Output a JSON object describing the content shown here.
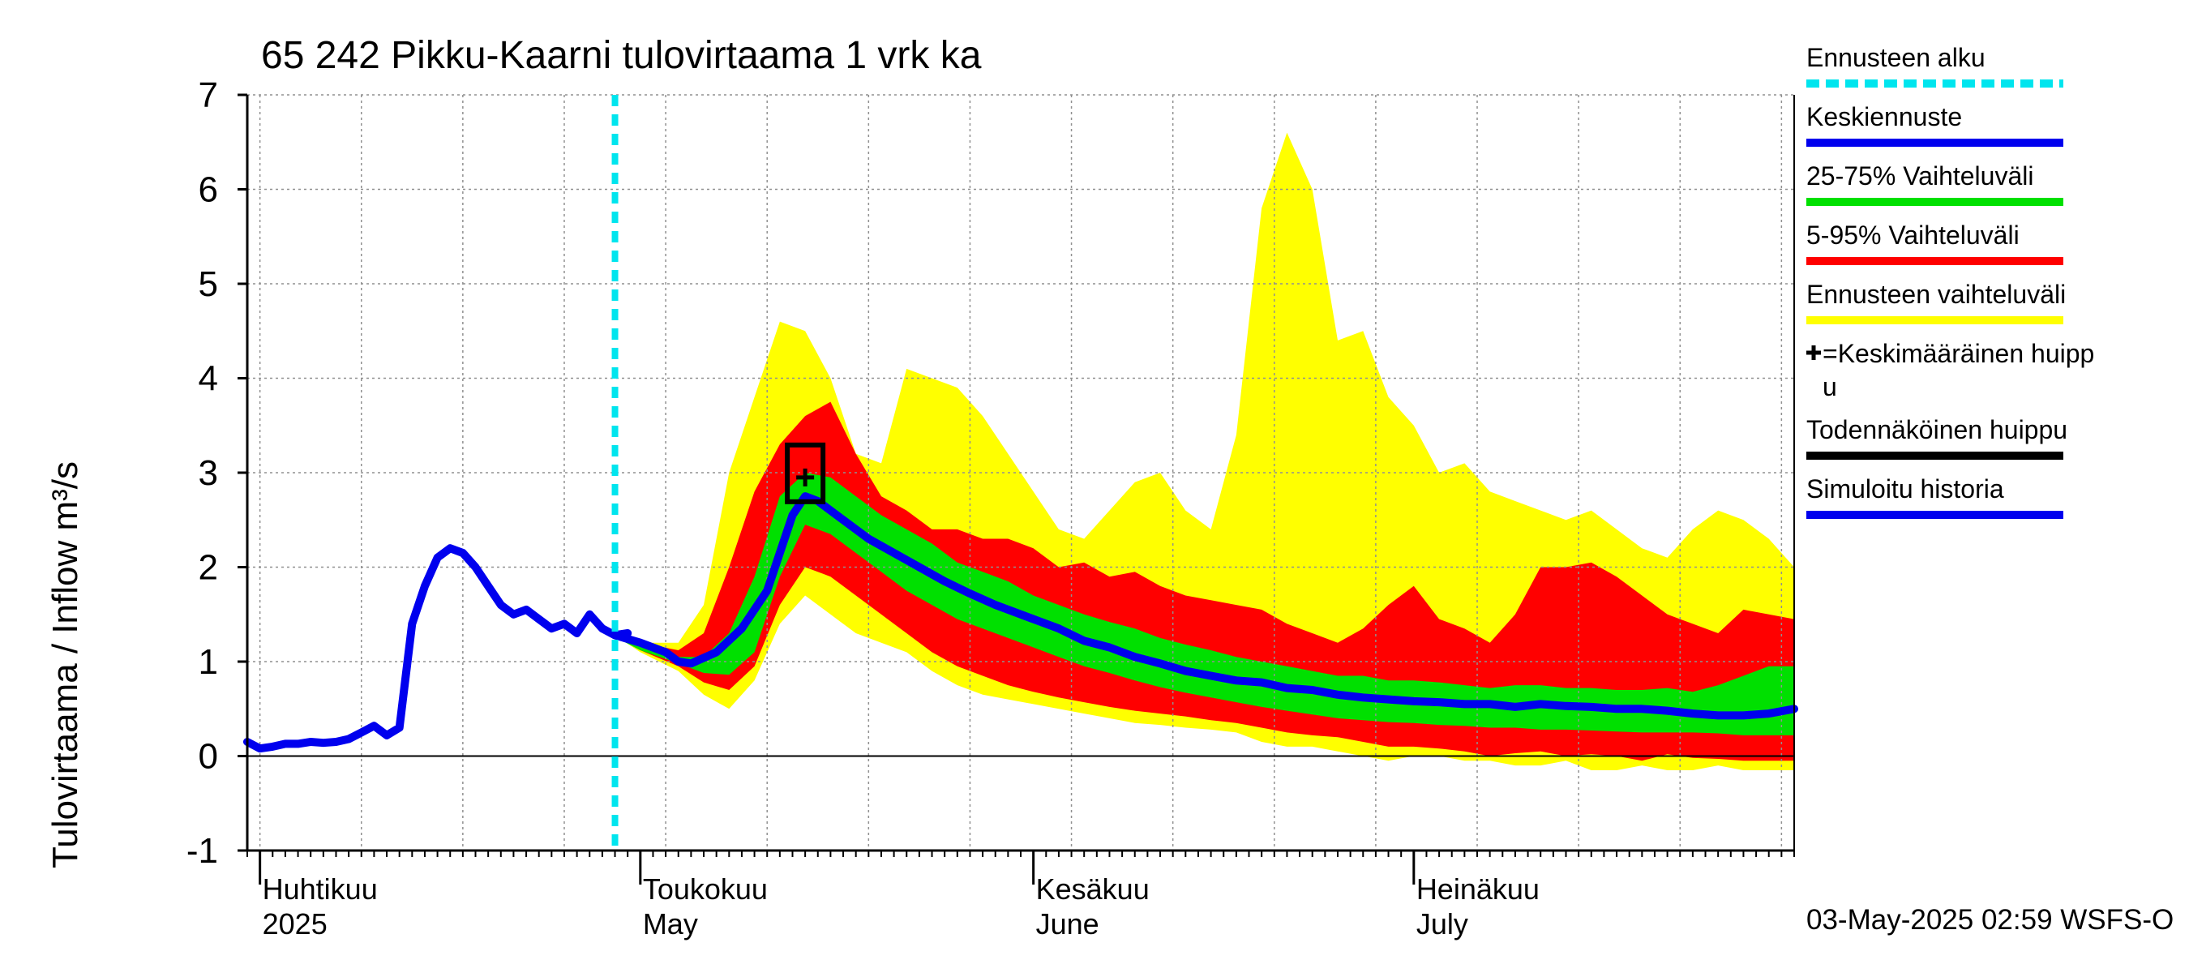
{
  "chart_data": {
    "type": "area",
    "title": "65 242 Pikku-Kaarni tulovirtaama 1 vrk ka",
    "ylabel": "Tulovirtaama / Inflow    m³/s",
    "ylim": [
      -1,
      7
    ],
    "yticks": [
      -1,
      0,
      1,
      2,
      3,
      4,
      5,
      6,
      7
    ],
    "xlim": [
      "2025-03-31",
      "2025-07-31"
    ],
    "grid": true,
    "month_labels": [
      {
        "date": "2025-04-01",
        "fi": "Huhtikuu",
        "en": "2025"
      },
      {
        "date": "2025-05-01",
        "fi": "Toukokuu",
        "en": "May"
      },
      {
        "date": "2025-06-01",
        "fi": "Kesäkuu",
        "en": "June"
      },
      {
        "date": "2025-07-01",
        "fi": "Heinäkuu",
        "en": "July"
      }
    ],
    "footer": "03-May-2025 02:59 WSFS-O",
    "forecast_start": "2025-04-29",
    "legend_position": "right",
    "legend": [
      {
        "label": "Ennusteen alku",
        "color": "#00e5ee",
        "style": "dashed"
      },
      {
        "label": "Keskiennuste",
        "color": "#0000ee",
        "style": "solid"
      },
      {
        "label": "25-75% Vaihteluväli",
        "color": "#00e000",
        "style": "solid"
      },
      {
        "label": "5-95% Vaihteluväli",
        "color": "#ff0000",
        "style": "solid"
      },
      {
        "label": "Ennusteen vaihteluväli",
        "color": "#ffff00",
        "style": "solid"
      },
      {
        "label": "=Keskimääräinen huipp\nu",
        "color": "#000000",
        "style": "plus"
      },
      {
        "label": "Todennäköinen huippu",
        "color": "#000000",
        "style": "solid"
      },
      {
        "label": "Simuloitu historia",
        "color": "#0000ee",
        "style": "solid"
      }
    ],
    "mean_peak": {
      "date": "2025-05-14",
      "value": 2.95
    },
    "probable_peak": {
      "date": "2025-05-14",
      "value": 2.95
    },
    "series": [
      {
        "name": "Simuloitu historia",
        "x": [
          "2025-03-31",
          "2025-04-01",
          "2025-04-02",
          "2025-04-03",
          "2025-04-04",
          "2025-04-05",
          "2025-04-06",
          "2025-04-07",
          "2025-04-08",
          "2025-04-09",
          "2025-04-10",
          "2025-04-11",
          "2025-04-12",
          "2025-04-13",
          "2025-04-14",
          "2025-04-15",
          "2025-04-16",
          "2025-04-17",
          "2025-04-18",
          "2025-04-19",
          "2025-04-20",
          "2025-04-21",
          "2025-04-22",
          "2025-04-23",
          "2025-04-24",
          "2025-04-25",
          "2025-04-26",
          "2025-04-27",
          "2025-04-28",
          "2025-04-29",
          "2025-04-30"
        ],
        "values": [
          0.15,
          0.08,
          0.1,
          0.13,
          0.13,
          0.15,
          0.14,
          0.15,
          0.18,
          0.25,
          0.32,
          0.22,
          0.3,
          1.4,
          1.8,
          2.1,
          2.2,
          2.15,
          2.0,
          1.8,
          1.6,
          1.5,
          1.55,
          1.45,
          1.35,
          1.4,
          1.3,
          1.5,
          1.35,
          1.28,
          1.3
        ]
      },
      {
        "name": "Keskiennuste",
        "x": [
          "2025-04-29",
          "2025-05-01",
          "2025-05-03",
          "2025-05-04",
          "2025-05-05",
          "2025-05-07",
          "2025-05-09",
          "2025-05-11",
          "2025-05-13",
          "2025-05-14",
          "2025-05-15",
          "2025-05-17",
          "2025-05-19",
          "2025-05-21",
          "2025-05-23",
          "2025-05-25",
          "2025-05-27",
          "2025-05-29",
          "2025-06-01",
          "2025-06-03",
          "2025-06-05",
          "2025-06-07",
          "2025-06-09",
          "2025-06-11",
          "2025-06-13",
          "2025-06-15",
          "2025-06-17",
          "2025-06-19",
          "2025-06-21",
          "2025-06-23",
          "2025-06-25",
          "2025-06-27",
          "2025-06-29",
          "2025-07-01",
          "2025-07-03",
          "2025-07-05",
          "2025-07-07",
          "2025-07-09",
          "2025-07-11",
          "2025-07-13",
          "2025-07-15",
          "2025-07-17",
          "2025-07-19",
          "2025-07-21",
          "2025-07-23",
          "2025-07-25",
          "2025-07-27",
          "2025-07-29",
          "2025-07-31"
        ],
        "values": [
          1.28,
          1.2,
          1.1,
          1.0,
          0.98,
          1.1,
          1.35,
          1.75,
          2.55,
          2.75,
          2.7,
          2.5,
          2.3,
          2.15,
          2.0,
          1.85,
          1.72,
          1.6,
          1.45,
          1.35,
          1.22,
          1.15,
          1.05,
          0.98,
          0.9,
          0.85,
          0.8,
          0.78,
          0.72,
          0.7,
          0.65,
          0.62,
          0.6,
          0.58,
          0.57,
          0.55,
          0.55,
          0.52,
          0.55,
          0.53,
          0.52,
          0.5,
          0.5,
          0.48,
          0.45,
          0.43,
          0.43,
          0.45,
          0.5
        ]
      }
    ],
    "bands": [
      {
        "name": "Ennusteen vaihteluväli",
        "x": [
          "2025-04-29",
          "2025-05-01",
          "2025-05-04",
          "2025-05-06",
          "2025-05-08",
          "2025-05-10",
          "2025-05-12",
          "2025-05-14",
          "2025-05-16",
          "2025-05-18",
          "2025-05-20",
          "2025-05-22",
          "2025-05-24",
          "2025-05-26",
          "2025-05-28",
          "2025-05-30",
          "2025-06-01",
          "2025-06-03",
          "2025-06-05",
          "2025-06-07",
          "2025-06-09",
          "2025-06-11",
          "2025-06-13",
          "2025-06-15",
          "2025-06-17",
          "2025-06-19",
          "2025-06-21",
          "2025-06-23",
          "2025-06-25",
          "2025-06-27",
          "2025-06-29",
          "2025-07-01",
          "2025-07-03",
          "2025-07-05",
          "2025-07-07",
          "2025-07-09",
          "2025-07-11",
          "2025-07-13",
          "2025-07-15",
          "2025-07-17",
          "2025-07-19",
          "2025-07-21",
          "2025-07-23",
          "2025-07-25",
          "2025-07-27",
          "2025-07-29",
          "2025-07-31"
        ],
        "upper": [
          1.35,
          1.2,
          1.2,
          1.6,
          3.0,
          3.8,
          4.6,
          4.5,
          4.0,
          3.2,
          3.1,
          4.1,
          4.0,
          3.9,
          3.6,
          3.2,
          2.8,
          2.4,
          2.3,
          2.6,
          2.9,
          3.0,
          2.6,
          2.4,
          3.4,
          5.8,
          6.6,
          6.0,
          4.4,
          4.5,
          3.8,
          3.5,
          3.0,
          3.1,
          2.8,
          2.7,
          2.6,
          2.5,
          2.6,
          2.4,
          2.2,
          2.1,
          2.4,
          2.6,
          2.5,
          2.3,
          2.0
        ],
        "lower": [
          1.28,
          1.1,
          0.9,
          0.65,
          0.5,
          0.8,
          1.4,
          1.7,
          1.5,
          1.3,
          1.2,
          1.1,
          0.9,
          0.75,
          0.65,
          0.6,
          0.55,
          0.5,
          0.45,
          0.4,
          0.35,
          0.33,
          0.3,
          0.28,
          0.25,
          0.15,
          0.1,
          0.1,
          0.05,
          0.0,
          -0.05,
          0.0,
          0.0,
          -0.05,
          -0.05,
          -0.1,
          -0.1,
          -0.05,
          -0.15,
          -0.15,
          -0.1,
          -0.15,
          -0.15,
          -0.1,
          -0.15,
          -0.15,
          -0.15
        ]
      },
      {
        "name": "5-95% Vaihteluväli",
        "x": [
          "2025-04-29",
          "2025-05-01",
          "2025-05-04",
          "2025-05-06",
          "2025-05-08",
          "2025-05-10",
          "2025-05-12",
          "2025-05-14",
          "2025-05-16",
          "2025-05-18",
          "2025-05-20",
          "2025-05-22",
          "2025-05-24",
          "2025-05-26",
          "2025-05-28",
          "2025-05-30",
          "2025-06-01",
          "2025-06-03",
          "2025-06-05",
          "2025-06-07",
          "2025-06-09",
          "2025-06-11",
          "2025-06-13",
          "2025-06-15",
          "2025-06-17",
          "2025-06-19",
          "2025-06-21",
          "2025-06-23",
          "2025-06-25",
          "2025-06-27",
          "2025-06-29",
          "2025-07-01",
          "2025-07-03",
          "2025-07-05",
          "2025-07-07",
          "2025-07-09",
          "2025-07-11",
          "2025-07-13",
          "2025-07-15",
          "2025-07-17",
          "2025-07-19",
          "2025-07-21",
          "2025-07-23",
          "2025-07-25",
          "2025-07-27",
          "2025-07-29",
          "2025-07-31"
        ],
        "upper": [
          1.35,
          1.2,
          1.12,
          1.3,
          2.0,
          2.8,
          3.3,
          3.6,
          3.75,
          3.2,
          2.75,
          2.6,
          2.4,
          2.4,
          2.3,
          2.3,
          2.2,
          2.0,
          2.05,
          1.9,
          1.95,
          1.8,
          1.7,
          1.65,
          1.6,
          1.55,
          1.4,
          1.3,
          1.2,
          1.35,
          1.6,
          1.8,
          1.45,
          1.35,
          1.2,
          1.5,
          2.0,
          2.0,
          2.05,
          1.9,
          1.7,
          1.5,
          1.4,
          1.3,
          1.55,
          1.5,
          1.45
        ],
        "lower": [
          1.28,
          1.12,
          0.95,
          0.78,
          0.7,
          0.95,
          1.6,
          2.0,
          1.9,
          1.7,
          1.5,
          1.3,
          1.1,
          0.95,
          0.85,
          0.75,
          0.68,
          0.62,
          0.57,
          0.52,
          0.48,
          0.45,
          0.42,
          0.38,
          0.35,
          0.3,
          0.25,
          0.22,
          0.2,
          0.15,
          0.1,
          0.1,
          0.08,
          0.05,
          0.0,
          0.03,
          0.05,
          0.0,
          0.02,
          0.0,
          -0.05,
          0.02,
          -0.02,
          -0.03,
          -0.05,
          -0.05,
          -0.05
        ]
      },
      {
        "name": "25-75% Vaihteluväli",
        "x": [
          "2025-04-29",
          "2025-05-01",
          "2025-05-04",
          "2025-05-06",
          "2025-05-08",
          "2025-05-10",
          "2025-05-12",
          "2025-05-14",
          "2025-05-16",
          "2025-05-18",
          "2025-05-20",
          "2025-05-22",
          "2025-05-24",
          "2025-05-26",
          "2025-05-28",
          "2025-05-30",
          "2025-06-01",
          "2025-06-03",
          "2025-06-05",
          "2025-06-07",
          "2025-06-09",
          "2025-06-11",
          "2025-06-13",
          "2025-06-15",
          "2025-06-17",
          "2025-06-19",
          "2025-06-21",
          "2025-06-23",
          "2025-06-25",
          "2025-06-27",
          "2025-06-29",
          "2025-07-01",
          "2025-07-03",
          "2025-07-05",
          "2025-07-07",
          "2025-07-09",
          "2025-07-11",
          "2025-07-13",
          "2025-07-15",
          "2025-07-17",
          "2025-07-19",
          "2025-07-21",
          "2025-07-23",
          "2025-07-25",
          "2025-07-27",
          "2025-07-29",
          "2025-07-31"
        ],
        "upper": [
          1.3,
          1.18,
          1.05,
          1.05,
          1.3,
          1.9,
          2.75,
          3.0,
          2.95,
          2.75,
          2.55,
          2.4,
          2.25,
          2.05,
          1.95,
          1.85,
          1.7,
          1.6,
          1.5,
          1.42,
          1.35,
          1.25,
          1.18,
          1.12,
          1.05,
          1.0,
          0.95,
          0.9,
          0.85,
          0.85,
          0.8,
          0.8,
          0.78,
          0.75,
          0.72,
          0.75,
          0.75,
          0.72,
          0.72,
          0.7,
          0.7,
          0.72,
          0.68,
          0.75,
          0.85,
          0.95,
          0.95
        ],
        "lower": [
          1.26,
          1.12,
          0.98,
          0.88,
          0.86,
          1.1,
          1.9,
          2.45,
          2.35,
          2.15,
          1.95,
          1.75,
          1.6,
          1.45,
          1.35,
          1.25,
          1.15,
          1.05,
          0.95,
          0.88,
          0.8,
          0.73,
          0.67,
          0.62,
          0.57,
          0.52,
          0.48,
          0.44,
          0.4,
          0.38,
          0.36,
          0.35,
          0.33,
          0.32,
          0.3,
          0.3,
          0.28,
          0.28,
          0.27,
          0.26,
          0.25,
          0.25,
          0.25,
          0.24,
          0.22,
          0.22,
          0.22
        ]
      }
    ]
  },
  "colors": {
    "yellow": "#ffff00",
    "red": "#ff0000",
    "green": "#00e000",
    "blue": "#0000ee",
    "cyan": "#00e5ee",
    "grid": "#909090"
  }
}
